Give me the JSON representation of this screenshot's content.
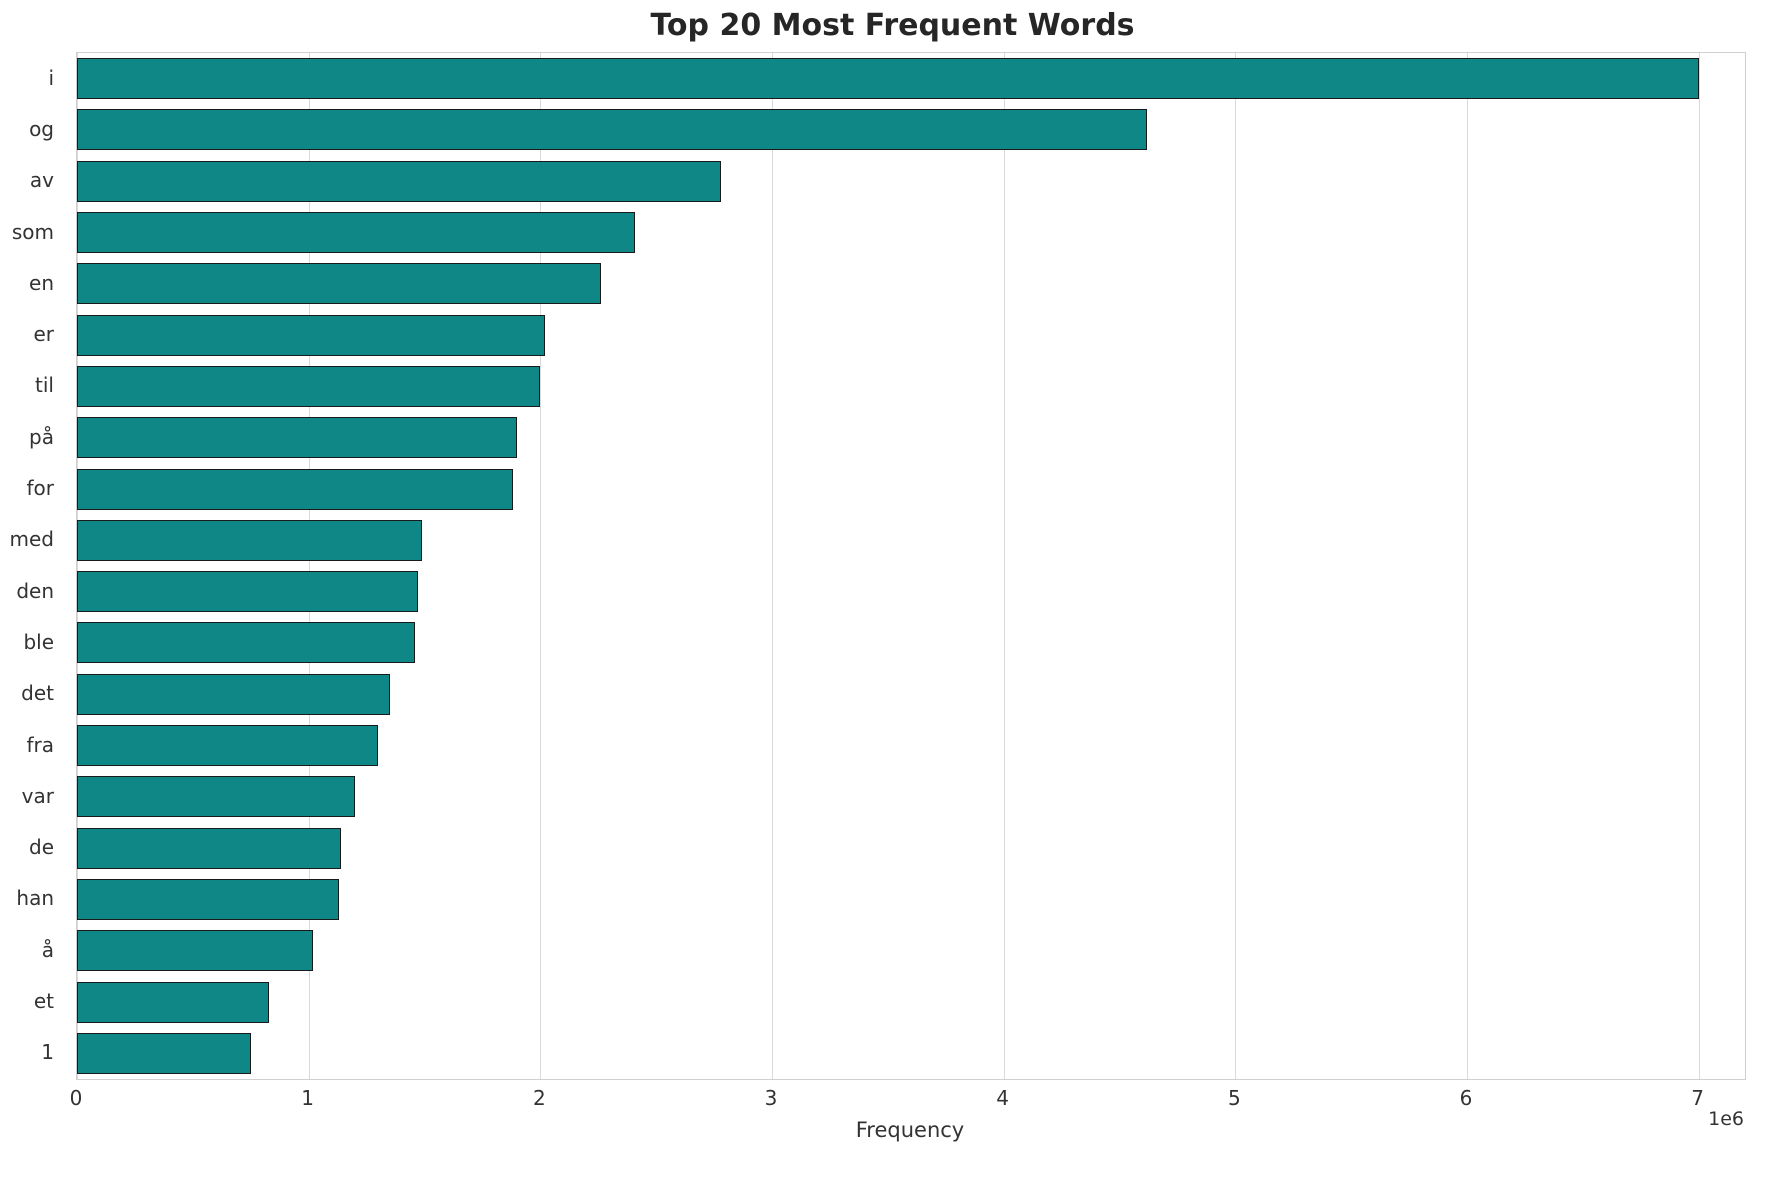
{
  "chart_data": {
    "type": "bar",
    "orientation": "horizontal",
    "title": "Top 20 Most Frequent Words",
    "xlabel": "Frequency",
    "ylabel": "",
    "x_offset_label": "1e6",
    "categories": [
      "i",
      "og",
      "av",
      "som",
      "en",
      "er",
      "til",
      "på",
      "for",
      "med",
      "den",
      "ble",
      "det",
      "fra",
      "var",
      "de",
      "han",
      "å",
      "et",
      "1"
    ],
    "values": [
      7000000,
      4620000,
      2780000,
      2410000,
      2260000,
      2020000,
      2000000,
      1900000,
      1880000,
      1490000,
      1470000,
      1460000,
      1350000,
      1300000,
      1200000,
      1140000,
      1130000,
      1020000,
      830000,
      750000
    ],
    "xlim": [
      0,
      7200000
    ],
    "xticks": [
      0,
      1,
      2,
      3,
      4,
      5,
      6,
      7
    ],
    "xtick_unit": 1000000,
    "grid": true,
    "legend": false,
    "bar_color": "#0e8786",
    "bar_edge_color": "#1a1a1a",
    "grid_color": "#d9d9d9",
    "background_color": "#ffffff"
  }
}
